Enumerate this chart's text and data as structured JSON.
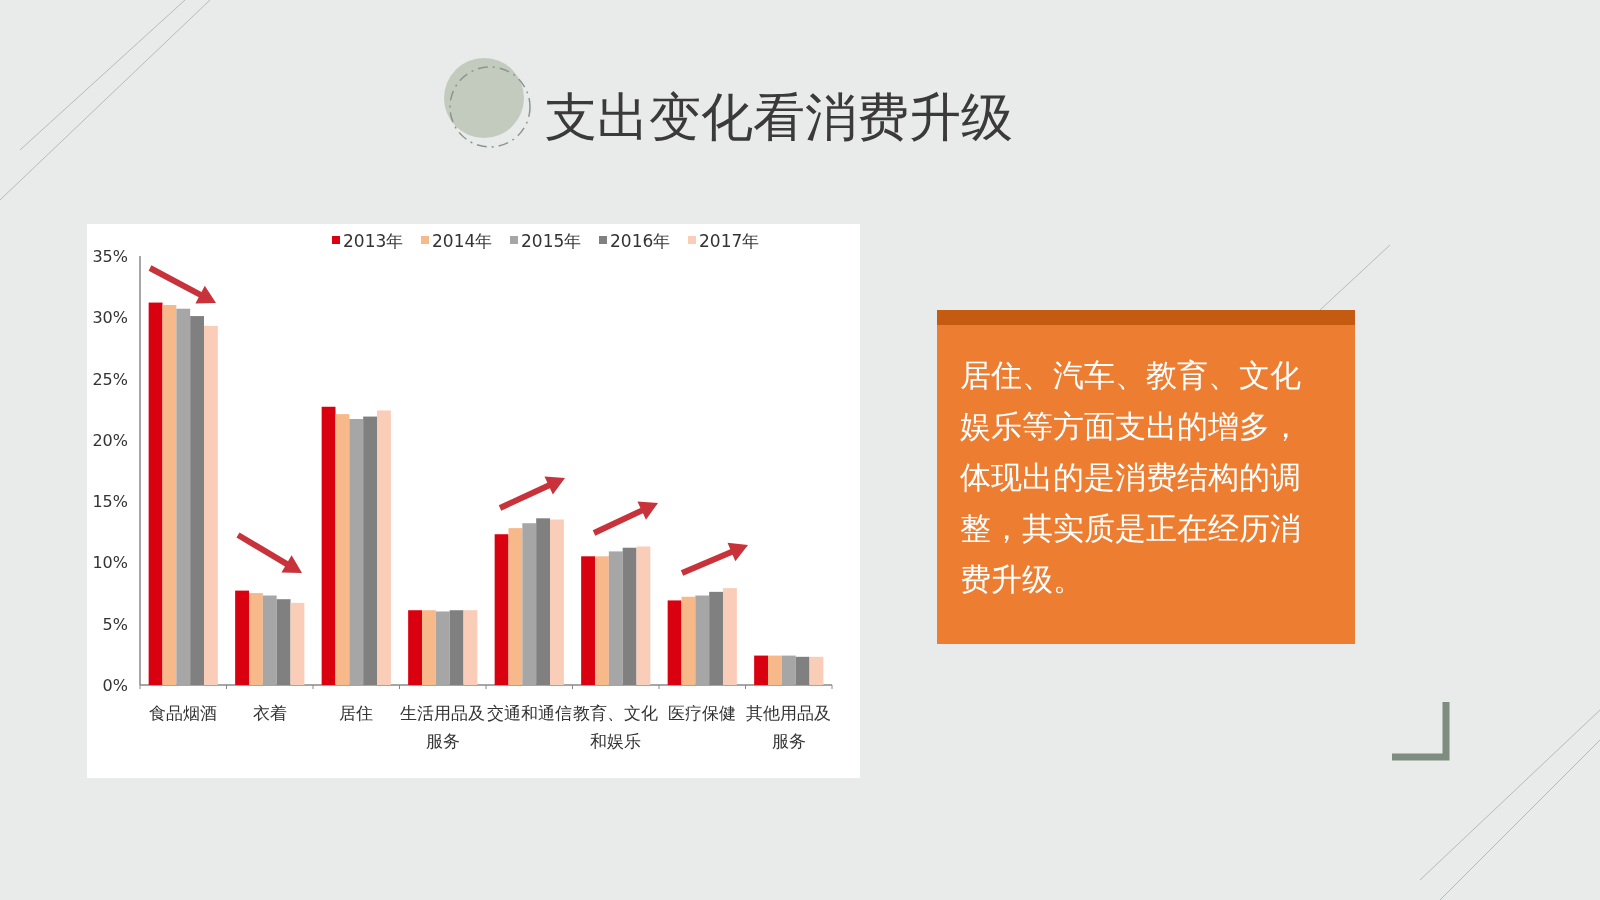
{
  "chart_data": {
    "type": "bar",
    "title": "支出变化看消费升级",
    "annotations": [
      "居住、汽车、教育、文化娱乐等方面支出的增多，体现出的是消费结构的调整，其实质是正在经历消费升级。"
    ],
    "categories": [
      "食品烟酒",
      "衣着",
      "居住",
      "生活用品及服务",
      "交通和通信",
      "教育、文化和娱乐",
      "医疗保健",
      "其他用品及服务"
    ],
    "series": [
      {
        "name": "2013年",
        "color": "#d9000f",
        "values": [
          31.2,
          7.7,
          22.7,
          6.1,
          12.3,
          10.5,
          6.9,
          2.4
        ]
      },
      {
        "name": "2014年",
        "color": "#f7b98a",
        "values": [
          31.0,
          7.5,
          22.1,
          6.1,
          12.8,
          10.5,
          7.2,
          2.4
        ]
      },
      {
        "name": "2015年",
        "color": "#a6a6a6",
        "values": [
          30.7,
          7.3,
          21.7,
          6.0,
          13.2,
          10.9,
          7.3,
          2.4
        ]
      },
      {
        "name": "2016年",
        "color": "#808080",
        "values": [
          30.1,
          7.0,
          21.9,
          6.1,
          13.6,
          11.2,
          7.6,
          2.3
        ]
      },
      {
        "name": "2017年",
        "color": "#f9cdb7",
        "values": [
          29.3,
          6.7,
          22.4,
          6.1,
          13.5,
          11.3,
          7.9,
          2.3
        ]
      }
    ],
    "ylim": [
      0,
      35
    ],
    "yticks": [
      {
        "value": 0,
        "label": "0%"
      },
      {
        "value": 5,
        "label": "5%"
      },
      {
        "value": 10,
        "label": "10%"
      },
      {
        "value": 15,
        "label": "15%"
      },
      {
        "value": 20,
        "label": "20%"
      },
      {
        "value": 25,
        "label": "25%"
      },
      {
        "value": 30,
        "label": "30%"
      },
      {
        "value": 35,
        "label": "35%"
      }
    ],
    "grid": false,
    "legend": "top"
  }
}
